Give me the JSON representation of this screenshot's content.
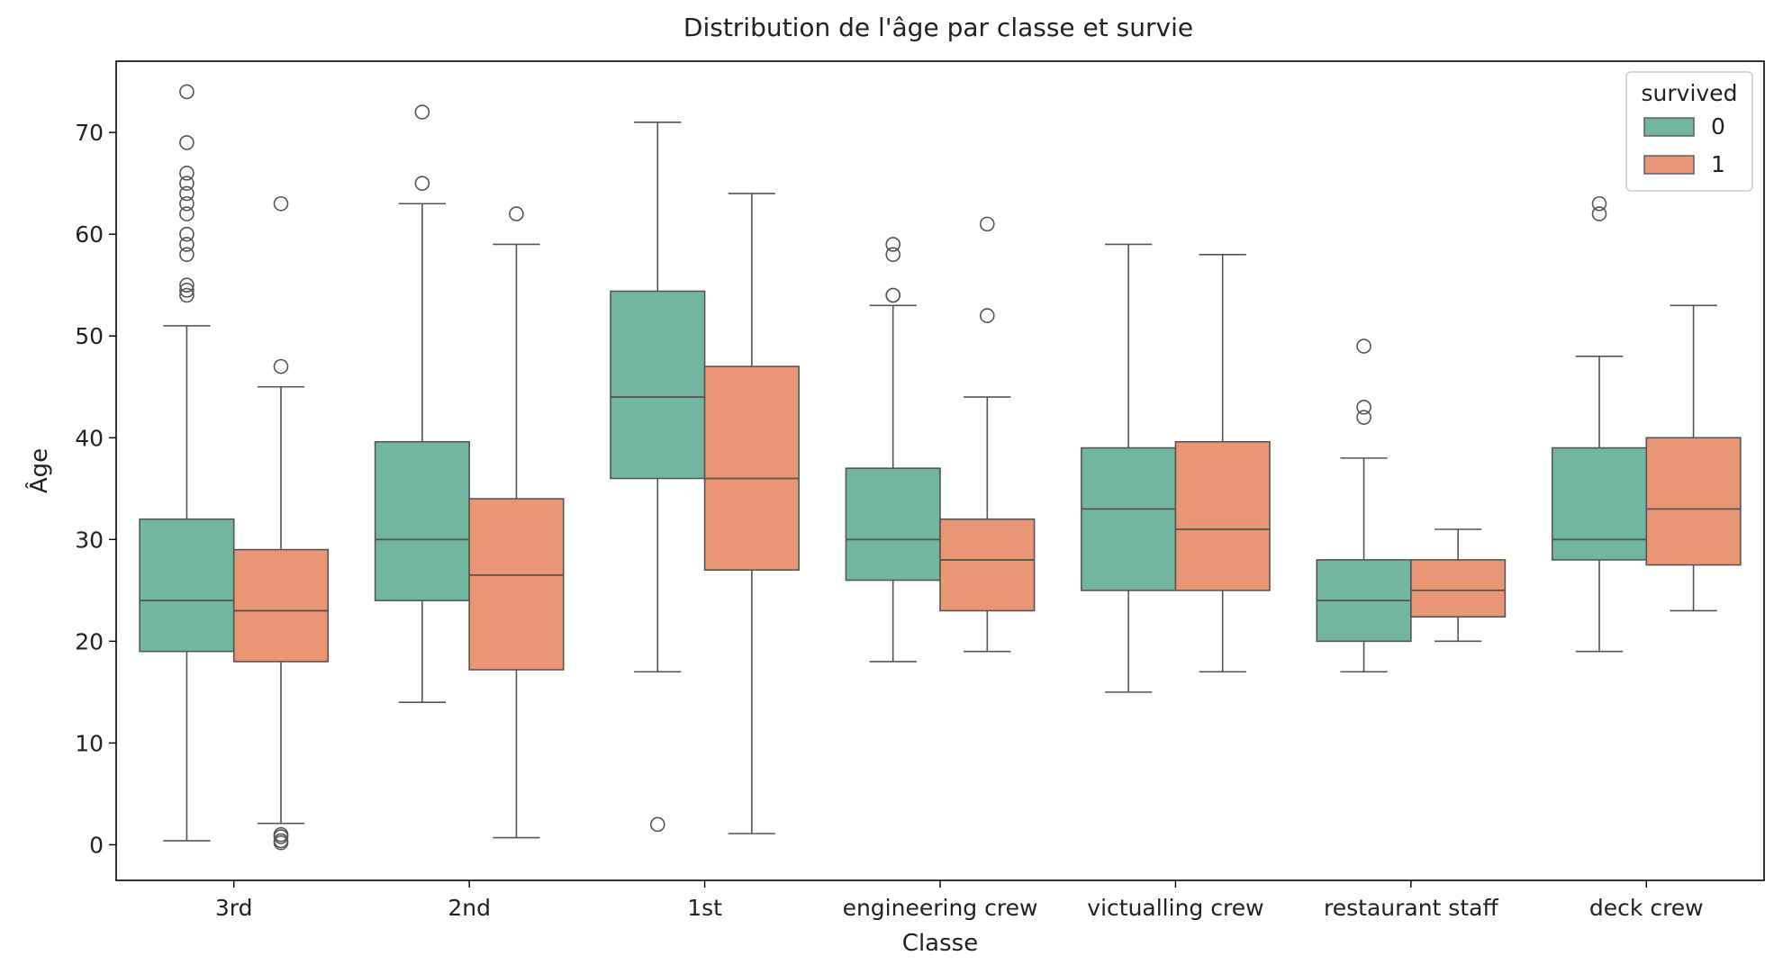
{
  "chart_data": {
    "type": "boxplot",
    "title": "Distribution de l'âge par classe et survie",
    "xlabel": "Classe",
    "ylabel": "Âge",
    "ylim": [
      -3.5,
      77
    ],
    "yticks": [
      0,
      10,
      20,
      30,
      40,
      50,
      60,
      70
    ],
    "grid": false,
    "legend": {
      "title": "survived",
      "position": "top-right"
    },
    "categories": [
      "3rd",
      "2nd",
      "1st",
      "engineering crew",
      "victualling crew",
      "restaurant staff",
      "deck crew"
    ],
    "series": [
      {
        "name": "0",
        "color": "#72b6a1",
        "boxes": [
          {
            "whislo": 0.4,
            "q1": 19,
            "med": 24,
            "q3": 32,
            "whishi": 51,
            "fliers": [
              54,
              54.5,
              55,
              58,
              59,
              60,
              62,
              63,
              64,
              65,
              66,
              69,
              74
            ]
          },
          {
            "whislo": 14,
            "q1": 24,
            "med": 30,
            "q3": 39.6,
            "whishi": 63,
            "fliers": [
              65,
              72
            ]
          },
          {
            "whislo": 17,
            "q1": 36,
            "med": 44,
            "q3": 54.4,
            "whishi": 71,
            "fliers": [
              2
            ]
          },
          {
            "whislo": 18,
            "q1": 26,
            "med": 30,
            "q3": 37,
            "whishi": 53,
            "fliers": [
              54,
              54,
              58,
              59
            ]
          },
          {
            "whislo": 15,
            "q1": 25,
            "med": 33,
            "q3": 39,
            "whishi": 59,
            "fliers": []
          },
          {
            "whislo": 17,
            "q1": 20,
            "med": 24,
            "q3": 28,
            "whishi": 38,
            "fliers": [
              42,
              43,
              49
            ]
          },
          {
            "whislo": 19,
            "q1": 28,
            "med": 30,
            "q3": 39,
            "whishi": 48,
            "fliers": [
              62,
              63
            ]
          }
        ]
      },
      {
        "name": "1",
        "color": "#e99675",
        "boxes": [
          {
            "whislo": 2.1,
            "q1": 18,
            "med": 23,
            "q3": 29,
            "whishi": 45,
            "fliers": [
              0.2,
              0.4,
              0.8,
              1,
              47,
              63
            ]
          },
          {
            "whislo": 0.7,
            "q1": 17.2,
            "med": 26.5,
            "q3": 34,
            "whishi": 59,
            "fliers": [
              62
            ]
          },
          {
            "whislo": 1.1,
            "q1": 27,
            "med": 36,
            "q3": 47,
            "whishi": 64,
            "fliers": []
          },
          {
            "whislo": 19,
            "q1": 23,
            "med": 28,
            "q3": 32,
            "whishi": 44,
            "fliers": [
              52,
              61
            ]
          },
          {
            "whislo": 17,
            "q1": 25,
            "med": 31,
            "q3": 39.6,
            "whishi": 58,
            "fliers": []
          },
          {
            "whislo": 20,
            "q1": 22.4,
            "med": 25,
            "q3": 28,
            "whishi": 31,
            "fliers": []
          },
          {
            "whislo": 23,
            "q1": 27.5,
            "med": 33,
            "q3": 40,
            "whishi": 53,
            "fliers": []
          }
        ]
      }
    ]
  }
}
